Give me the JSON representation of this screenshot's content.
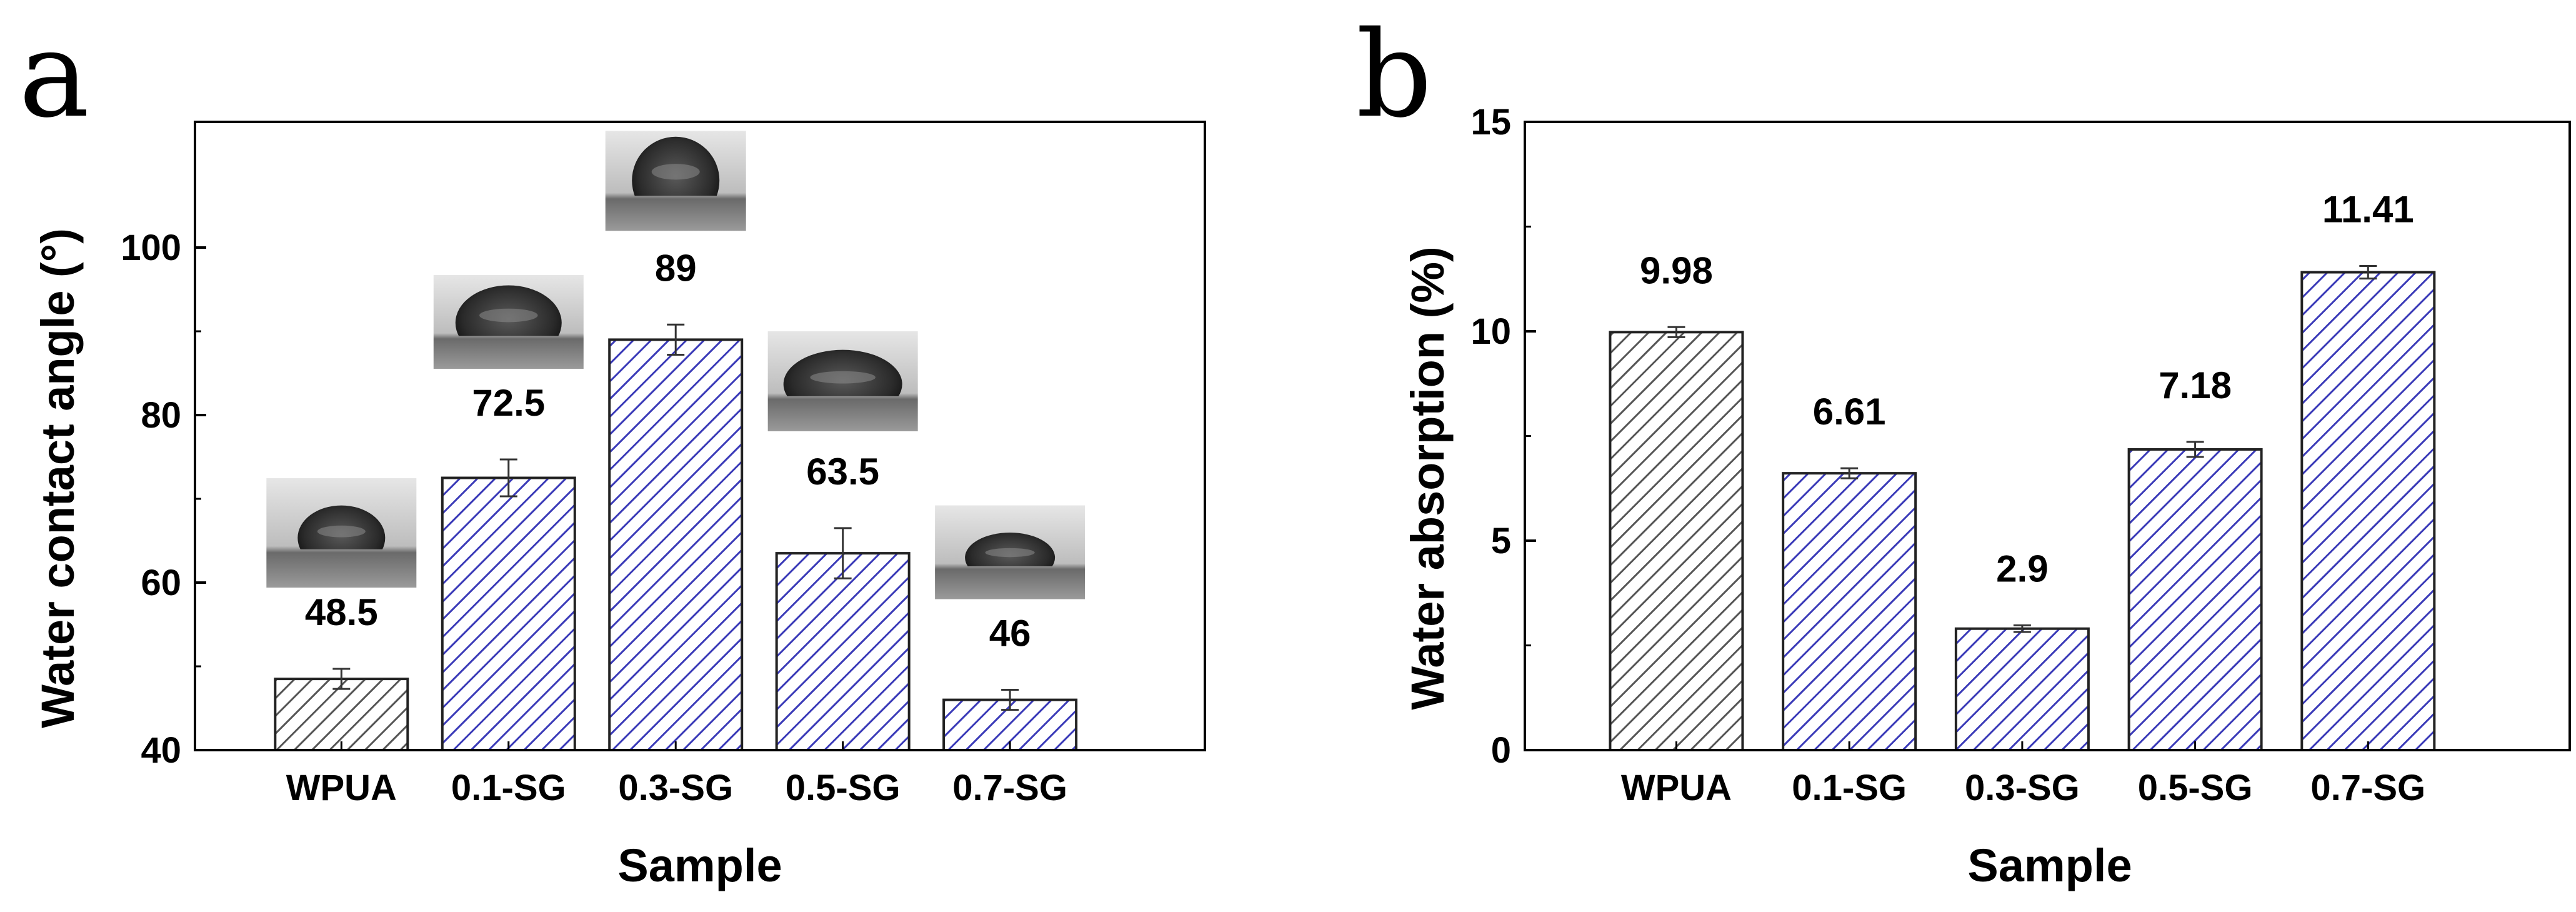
{
  "colors": {
    "control_hatch": "#555555",
    "sample_hatch": "#3a3ab8",
    "axis": "#000000"
  },
  "chart_data": [
    {
      "panel": "a",
      "type": "bar",
      "title": "",
      "xlabel": "Sample",
      "ylabel": "Water contact angle (°)",
      "categories": [
        "WPUA",
        "0.1-SG",
        "0.3-SG",
        "0.5-SG",
        "0.7-SG"
      ],
      "values": [
        48.5,
        72.5,
        89,
        63.5,
        46
      ],
      "value_labels": [
        "48.5",
        "72.5",
        "89",
        "63.5",
        "46"
      ],
      "errors": [
        1.2,
        2.2,
        1.8,
        3.0,
        1.2
      ],
      "ylim": [
        40,
        115
      ],
      "yticks": [
        40,
        60,
        80,
        100
      ],
      "droplet_images": [
        "water-droplet-photo",
        "water-droplet-photo",
        "water-droplet-photo",
        "water-droplet-photo",
        "water-droplet-photo"
      ]
    },
    {
      "panel": "b",
      "type": "bar",
      "title": "",
      "xlabel": "Sample",
      "ylabel": "Water absorption (%)",
      "categories": [
        "WPUA",
        "0.1-SG",
        "0.3-SG",
        "0.5-SG",
        "0.7-SG"
      ],
      "values": [
        9.98,
        6.61,
        2.9,
        7.18,
        11.41
      ],
      "value_labels": [
        "9.98",
        "6.61",
        "2.9",
        "7.18",
        "11.41"
      ],
      "errors": [
        0.12,
        0.12,
        0.08,
        0.18,
        0.15
      ],
      "ylim": [
        0,
        15
      ],
      "yticks": [
        0,
        5,
        10,
        15
      ]
    }
  ]
}
